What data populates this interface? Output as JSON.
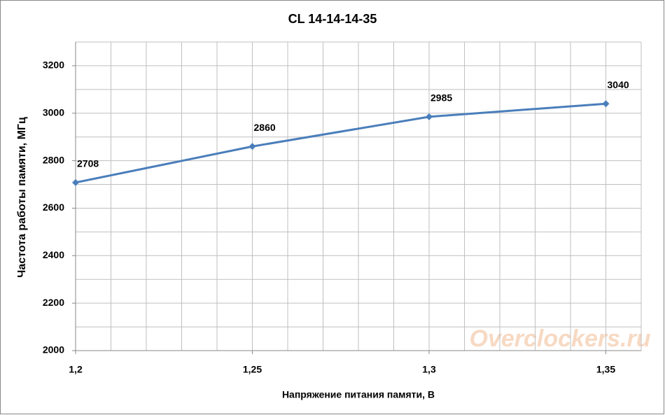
{
  "chart_data": {
    "type": "line",
    "title": "CL 14-14-14-35",
    "x_label": "Напряжение питания памяти, В",
    "y_label": "Частота работы памяти, МГц",
    "watermark": "Overclockers.ru",
    "x": [
      1.2,
      1.25,
      1.3,
      1.35
    ],
    "series": [
      {
        "name": "CL 14-14-14-35",
        "color": "#4a7ebb",
        "values": [
          2708,
          2860,
          2985,
          3040
        ]
      }
    ],
    "xlim": [
      1.2,
      1.36
    ],
    "xticks": [
      {
        "value": 1.2,
        "label": "1,2"
      },
      {
        "value": 1.25,
        "label": "1,25"
      },
      {
        "value": 1.3,
        "label": "1,3"
      },
      {
        "value": 1.35,
        "label": "1,35"
      }
    ],
    "xgrid": [
      1.2,
      1.21,
      1.22,
      1.23,
      1.24,
      1.25,
      1.26,
      1.27,
      1.28,
      1.29,
      1.3,
      1.31,
      1.32,
      1.33,
      1.34,
      1.35,
      1.36
    ],
    "ylim": [
      2000,
      3300
    ],
    "yticks": [
      2000,
      2200,
      2400,
      2600,
      2800,
      3000,
      3200
    ],
    "ygrid": [
      2000,
      2100,
      2200,
      2300,
      2400,
      2500,
      2600,
      2700,
      2800,
      2900,
      3000,
      3100,
      3200,
      3300
    ],
    "grid": true
  }
}
